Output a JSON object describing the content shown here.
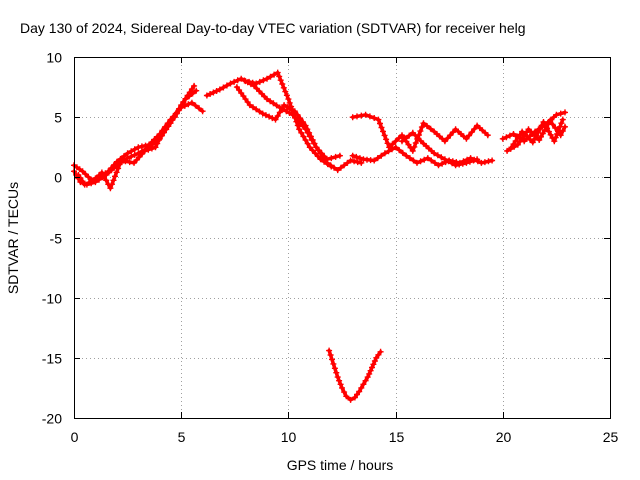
{
  "chart_data": {
    "type": "scatter",
    "title": "Day 130 of 2024, Sidereal Day-to-day VTEC variation (SDTVAR) for receiver helg",
    "xlabel": "GPS time / hours",
    "ylabel": "SDTVAR / TECUs",
    "xlim": [
      0,
      25
    ],
    "ylim": [
      -20,
      10
    ],
    "xticks": [
      0,
      5,
      10,
      15,
      20,
      25
    ],
    "yticks": [
      10,
      5,
      0,
      -5,
      -10,
      -15,
      -20
    ],
    "grid": true,
    "marker": "+",
    "series_color": "#ff0000",
    "series": [
      {
        "name": "track-a",
        "x": [
          0.0,
          0.3,
          0.6,
          1.0,
          1.5,
          2.0,
          2.5,
          3.0,
          3.5,
          4.0,
          4.5,
          5.0,
          5.3,
          5.6
        ],
        "y": [
          0.5,
          -0.4,
          -0.6,
          -0.4,
          0.2,
          1.0,
          1.6,
          2.0,
          2.5,
          3.2,
          4.5,
          6.0,
          6.8,
          7.6
        ]
      },
      {
        "name": "track-b",
        "x": [
          0.0,
          0.4,
          0.8,
          1.2,
          1.6,
          2.0,
          2.5,
          3.0,
          3.5,
          4.0,
          4.5,
          5.0,
          5.5,
          6.0
        ],
        "y": [
          1.0,
          0.5,
          -0.2,
          0.0,
          0.5,
          1.3,
          2.0,
          2.5,
          2.7,
          3.6,
          4.8,
          5.8,
          6.2,
          5.5
        ]
      },
      {
        "name": "track-c",
        "x": [
          0.2,
          0.5,
          0.9,
          1.3,
          1.7,
          2.2,
          2.8,
          3.3,
          3.8,
          4.2,
          4.7,
          5.2,
          5.7
        ],
        "y": [
          0.2,
          -0.6,
          -0.3,
          0.4,
          -0.9,
          1.4,
          1.2,
          2.2,
          2.5,
          4.0,
          5.0,
          6.5,
          7.2
        ]
      },
      {
        "name": "track-d",
        "x": [
          6.2,
          6.8,
          7.3,
          7.8,
          8.4,
          9.0,
          9.6,
          10.2,
          10.8,
          11.3,
          11.8,
          12.3,
          12.9,
          13.4
        ],
        "y": [
          6.8,
          7.3,
          7.8,
          8.2,
          7.6,
          6.5,
          5.8,
          5.2,
          4.0,
          2.5,
          1.2,
          0.6,
          1.4,
          1.2
        ]
      },
      {
        "name": "track-e",
        "x": [
          7.6,
          8.2,
          8.8,
          9.4,
          9.8,
          10.3,
          10.8,
          11.3,
          11.8,
          12.4
        ],
        "y": [
          7.5,
          6.0,
          5.3,
          4.8,
          6.0,
          5.5,
          4.3,
          2.5,
          1.5,
          1.8
        ]
      },
      {
        "name": "track-f",
        "x": [
          8.0,
          8.5,
          9.0,
          9.5,
          10.0,
          10.5,
          11.0,
          11.5,
          12.0
        ],
        "y": [
          8.0,
          7.8,
          8.2,
          8.7,
          6.5,
          4.0,
          2.5,
          1.5,
          0.9
        ]
      },
      {
        "name": "track-g",
        "x": [
          13.0,
          13.5,
          14.0,
          14.5,
          15.0,
          15.5,
          16.0,
          16.5,
          17.0,
          17.5,
          18.0,
          18.5,
          19.0,
          19.5
        ],
        "y": [
          1.8,
          1.5,
          1.4,
          2.0,
          2.5,
          1.8,
          1.2,
          1.6,
          1.0,
          1.4,
          1.2,
          1.6,
          1.2,
          1.4
        ]
      },
      {
        "name": "track-h",
        "x": [
          13.0,
          13.6,
          14.2,
          14.7,
          15.3,
          15.8,
          16.3,
          16.8,
          17.3,
          17.8,
          18.3,
          18.8,
          19.3
        ],
        "y": [
          5.0,
          5.2,
          4.8,
          2.5,
          3.5,
          2.2,
          4.5,
          3.8,
          3.0,
          4.0,
          3.2,
          4.3,
          3.5
        ]
      },
      {
        "name": "track-i",
        "x": [
          15.3,
          15.8,
          16.3,
          16.8,
          17.3,
          17.8,
          18.3,
          18.8
        ],
        "y": [
          3.0,
          3.7,
          2.8,
          2.0,
          1.5,
          1.0,
          1.2,
          1.5
        ]
      },
      {
        "name": "track-j",
        "x": [
          20.0,
          20.5,
          21.0,
          21.5,
          22.0,
          22.5,
          22.9
        ],
        "y": [
          3.2,
          3.6,
          3.0,
          3.8,
          4.4,
          5.2,
          5.4
        ]
      },
      {
        "name": "track-k",
        "x": [
          20.2,
          20.7,
          21.2,
          21.7,
          22.2,
          22.7,
          22.9
        ],
        "y": [
          2.2,
          2.7,
          4.0,
          3.1,
          4.7,
          3.5,
          4.2
        ]
      },
      {
        "name": "track-l",
        "x": [
          20.4,
          20.9,
          21.4,
          21.9,
          22.4,
          22.8
        ],
        "y": [
          2.5,
          3.8,
          2.9,
          4.6,
          3.0,
          4.8
        ]
      },
      {
        "name": "dip",
        "x": [
          11.9,
          12.1,
          12.3,
          12.5,
          12.7,
          12.9,
          13.1,
          13.3,
          13.5,
          13.7,
          13.9,
          14.1,
          14.3
        ],
        "y": [
          -14.4,
          -15.5,
          -16.6,
          -17.5,
          -18.2,
          -18.5,
          -18.3,
          -17.8,
          -17.2,
          -16.6,
          -15.8,
          -15.0,
          -14.5
        ]
      }
    ]
  }
}
